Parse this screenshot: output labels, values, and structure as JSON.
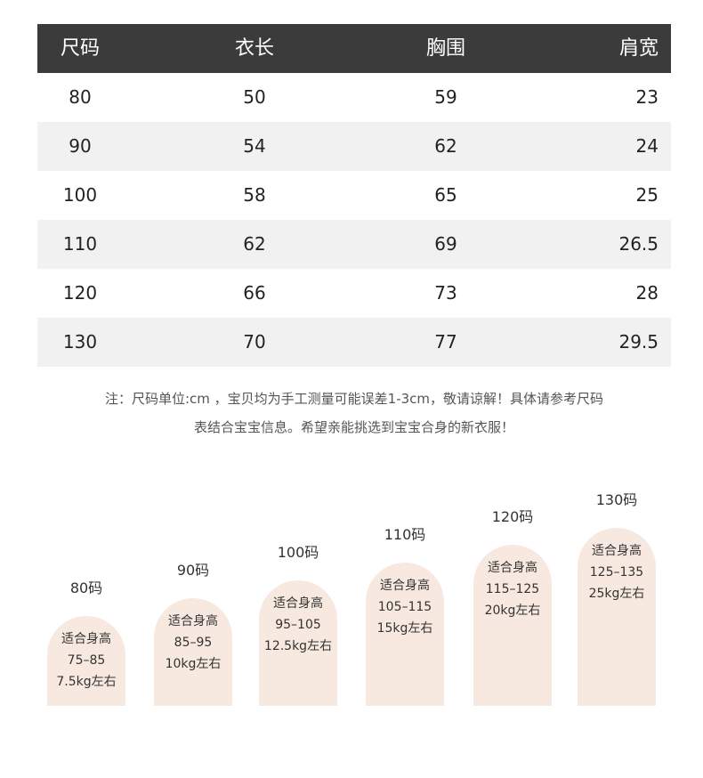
{
  "table": {
    "header": [
      "尺码",
      "衣长",
      "胸围",
      "肩宽"
    ],
    "rows": [
      [
        "80",
        "50",
        "59",
        "23"
      ],
      [
        "90",
        "54",
        "62",
        "24"
      ],
      [
        "100",
        "58",
        "65",
        "25"
      ],
      [
        "110",
        "62",
        "69",
        "26.5"
      ],
      [
        "120",
        "66",
        "73",
        "28"
      ],
      [
        "130",
        "70",
        "77",
        "29.5"
      ]
    ]
  },
  "note": [
    "注：尺码单位:cm ，宝贝均为手工测量可能误差1-3cm，敬请谅解！具体请参考尺码",
    "表结合宝宝信息。希望亲能挑选到宝宝合身的新衣服！"
  ],
  "cards": [
    {
      "label": "80码",
      "lines": [
        "适合身高",
        "75–85",
        "7.5kg左右"
      ]
    },
    {
      "label": "90码",
      "lines": [
        "适合身高",
        "85–95",
        "10kg左右"
      ]
    },
    {
      "label": "100码",
      "lines": [
        "适合身高",
        "95–105",
        "12.5kg左右"
      ]
    },
    {
      "label": "110码",
      "lines": [
        "适合身高",
        "105–115",
        "15kg左右"
      ]
    },
    {
      "label": "120码",
      "lines": [
        "适合身高",
        "115–125",
        "20kg左右"
      ]
    },
    {
      "label": "130码",
      "lines": [
        "适合身高",
        "125–135",
        "25kg左右"
      ]
    }
  ]
}
